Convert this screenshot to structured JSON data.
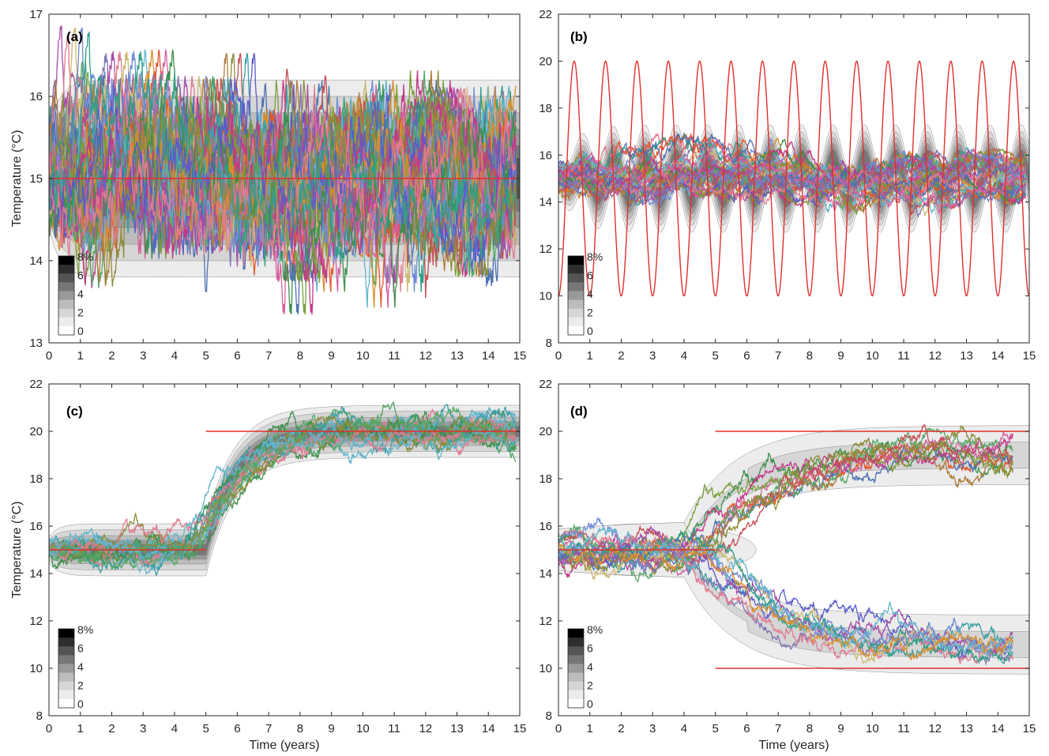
{
  "chart_data": [
    {
      "type": "line",
      "panel_label": "(a)",
      "xlabel": "",
      "ylabel": "Temperature (°C)",
      "xlim": [
        0,
        15
      ],
      "ylim": [
        13,
        17
      ],
      "xticks": [
        "0",
        "1",
        "2",
        "3",
        "4",
        "5",
        "6",
        "7",
        "8",
        "9",
        "10",
        "11",
        "12",
        "13",
        "14",
        "15"
      ],
      "yticks": [
        "13",
        "14",
        "15",
        "16",
        "17"
      ],
      "target": {
        "kind": "constant",
        "value": 15,
        "from": 0,
        "to": 15
      },
      "density_bands_halfwidth": [
        1.2,
        1.0,
        0.8,
        0.6,
        0.4,
        0.25
      ],
      "trajectory_count": 40,
      "trajectory_sd": 0.5,
      "colorbar": {
        "ticks": [
          "8%",
          "6",
          "4",
          "2",
          "0"
        ]
      },
      "colors": {
        "target": "#e0302c"
      }
    },
    {
      "type": "line",
      "panel_label": "(b)",
      "xlabel": "",
      "ylabel": "",
      "xlim": [
        0,
        15
      ],
      "ylim": [
        8,
        22
      ],
      "xticks": [
        "0",
        "1",
        "2",
        "3",
        "4",
        "5",
        "6",
        "7",
        "8",
        "9",
        "10",
        "11",
        "12",
        "13",
        "14",
        "15"
      ],
      "yticks": [
        "8",
        "10",
        "12",
        "14",
        "16",
        "18",
        "20",
        "22"
      ],
      "target": {
        "kind": "sinusoid",
        "mean": 15,
        "amplitude": 5,
        "period_years": 1,
        "peak_at": 0.5
      },
      "density_mean": 15,
      "density_oscillation_amplitude": 0.9,
      "density_bands_halfwidth": [
        1.4,
        1.1,
        0.85,
        0.6,
        0.35
      ],
      "trajectory_count": 30,
      "trajectory_sd": 0.55,
      "colorbar": {
        "ticks": [
          "8%",
          "6",
          "4",
          "2",
          "0"
        ]
      },
      "colors": {
        "target": "#e0302c"
      }
    },
    {
      "type": "line",
      "panel_label": "(c)",
      "xlabel": "Time (years)",
      "ylabel": "Temperature (°C)",
      "xlim": [
        0,
        15
      ],
      "ylim": [
        8,
        22
      ],
      "xticks": [
        "0",
        "1",
        "2",
        "3",
        "4",
        "5",
        "6",
        "7",
        "8",
        "9",
        "10",
        "11",
        "12",
        "13",
        "14",
        "15"
      ],
      "yticks": [
        "8",
        "10",
        "12",
        "14",
        "16",
        "18",
        "20",
        "22"
      ],
      "target": {
        "kind": "step",
        "segments": [
          {
            "from": 0,
            "to": 5,
            "value": 15
          },
          {
            "from": 5,
            "to": 15,
            "value": 20
          }
        ]
      },
      "density_bands_halfwidth": [
        1.1,
        0.85,
        0.6,
        0.4,
        0.22
      ],
      "trajectory_count": 14,
      "colorbar": {
        "ticks": [
          "8%",
          "6",
          "4",
          "2",
          "0"
        ]
      },
      "colors": {
        "target": "#e0302c"
      }
    },
    {
      "type": "line",
      "panel_label": "(d)",
      "xlabel": "Time (years)",
      "ylabel": "",
      "xlim": [
        0,
        15
      ],
      "ylim": [
        8,
        22
      ],
      "xticks": [
        "0",
        "1",
        "2",
        "3",
        "4",
        "5",
        "6",
        "7",
        "8",
        "9",
        "10",
        "11",
        "12",
        "13",
        "14",
        "15"
      ],
      "yticks": [
        "8",
        "10",
        "12",
        "14",
        "16",
        "18",
        "20",
        "22"
      ],
      "target": {
        "kind": "bifurcation",
        "segments": [
          {
            "from": 0,
            "to": 5,
            "value": 15
          },
          {
            "from": 5,
            "to": 15,
            "value": 20
          },
          {
            "from": 5,
            "to": 15,
            "value": 10
          }
        ]
      },
      "branches": [
        {
          "final": 19,
          "count": 10
        },
        {
          "final": 11,
          "count": 10
        }
      ],
      "colorbar": {
        "ticks": [
          "8%",
          "6",
          "4",
          "2",
          "0"
        ]
      },
      "colors": {
        "target": "#e0302c"
      }
    }
  ]
}
